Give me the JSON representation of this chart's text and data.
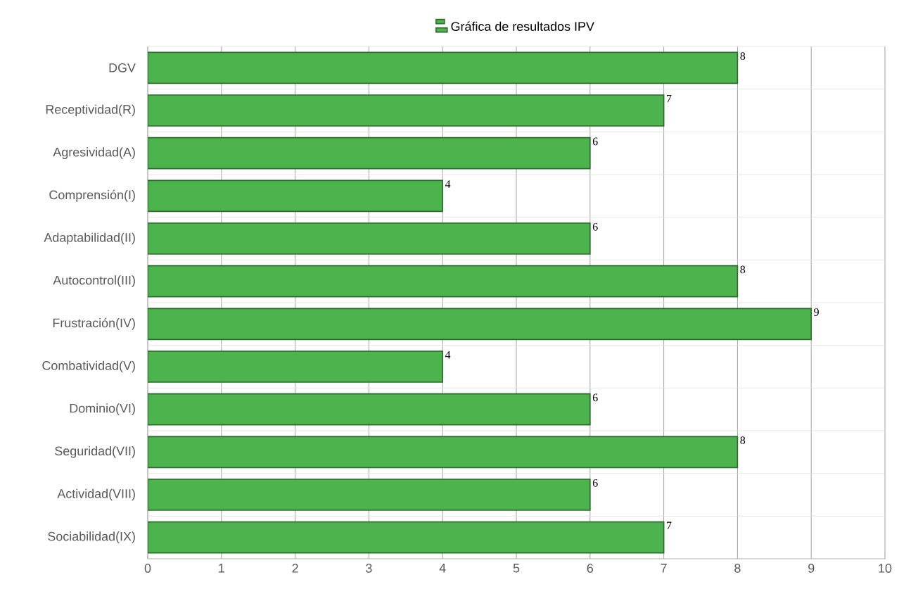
{
  "chart_data": {
    "type": "bar",
    "orientation": "horizontal",
    "categories": [
      "DGV",
      "Receptividad(R)",
      "Agresividad(A)",
      "Comprensión(I)",
      "Adaptabilidad(II)",
      "Autocontrol(III)",
      "Frustración(IV)",
      "Combatividad(V)",
      "Dominio(VI)",
      "Seguridad(VII)",
      "Actividad(VIII)",
      "Sociabilidad(IX)"
    ],
    "series": [
      {
        "name": "Gráfica de resultados IPV",
        "color": "#4db34d",
        "values": [
          8,
          7,
          6,
          4,
          6,
          8,
          9,
          4,
          6,
          8,
          6,
          7
        ]
      }
    ],
    "xlim": [
      0,
      10
    ],
    "xticks": [
      0,
      1,
      2,
      3,
      4,
      5,
      6,
      7,
      8,
      9,
      10
    ],
    "grid": true,
    "legend": "top",
    "data_labels": true
  }
}
